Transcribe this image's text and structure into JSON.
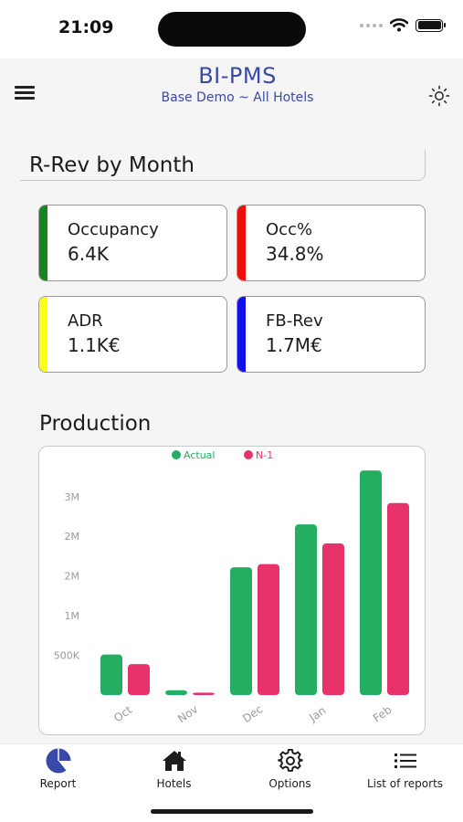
{
  "status_bar": {
    "time": "21:09"
  },
  "header": {
    "title": "BI-PMS",
    "subtitle": "Base Demo ~ All Hotels"
  },
  "report": {
    "title": "R-Rev by Month"
  },
  "kpis": [
    {
      "label": "Occupancy",
      "value": "6.4K",
      "color": "#15861d"
    },
    {
      "label": "Occ%",
      "value": "34.8%",
      "color": "#f20c0c"
    },
    {
      "label": "ADR",
      "value": "1.1K€",
      "color": "#ffff19"
    },
    {
      "label": "FB-Rev",
      "value": "1.7M€",
      "color": "#1010ec"
    }
  ],
  "production": {
    "title": "Production",
    "legend": {
      "actual": "Actual",
      "n1": "N-1"
    },
    "colors": {
      "actual": "#23ae62",
      "n1": "#e7336a"
    }
  },
  "chart_data": {
    "type": "bar",
    "categories": [
      "Oct",
      "Nov",
      "Dec",
      "Jan",
      "Feb"
    ],
    "series": [
      {
        "name": "Actual",
        "values": [
          510000,
          60000,
          1610000,
          2150000,
          2830000
        ]
      },
      {
        "name": "N-1",
        "values": [
          390000,
          30000,
          1650000,
          1910000,
          2420000
        ]
      }
    ],
    "y_ticks": [
      {
        "value": 500000,
        "label": "500K"
      },
      {
        "value": 1000000,
        "label": "1M"
      },
      {
        "value": 1500000,
        "label": "2M"
      },
      {
        "value": 2000000,
        "label": "2M"
      },
      {
        "value": 2500000,
        "label": "3M"
      }
    ],
    "ylim": [
      0,
      2900000
    ],
    "grid": false,
    "legend_position": "top-center"
  },
  "tabs": [
    {
      "label": "Report",
      "icon": "pie-chart-icon"
    },
    {
      "label": "Hotels",
      "icon": "home-icon"
    },
    {
      "label": "Options",
      "icon": "gear-icon"
    },
    {
      "label": "List of reports",
      "icon": "list-icon"
    }
  ]
}
